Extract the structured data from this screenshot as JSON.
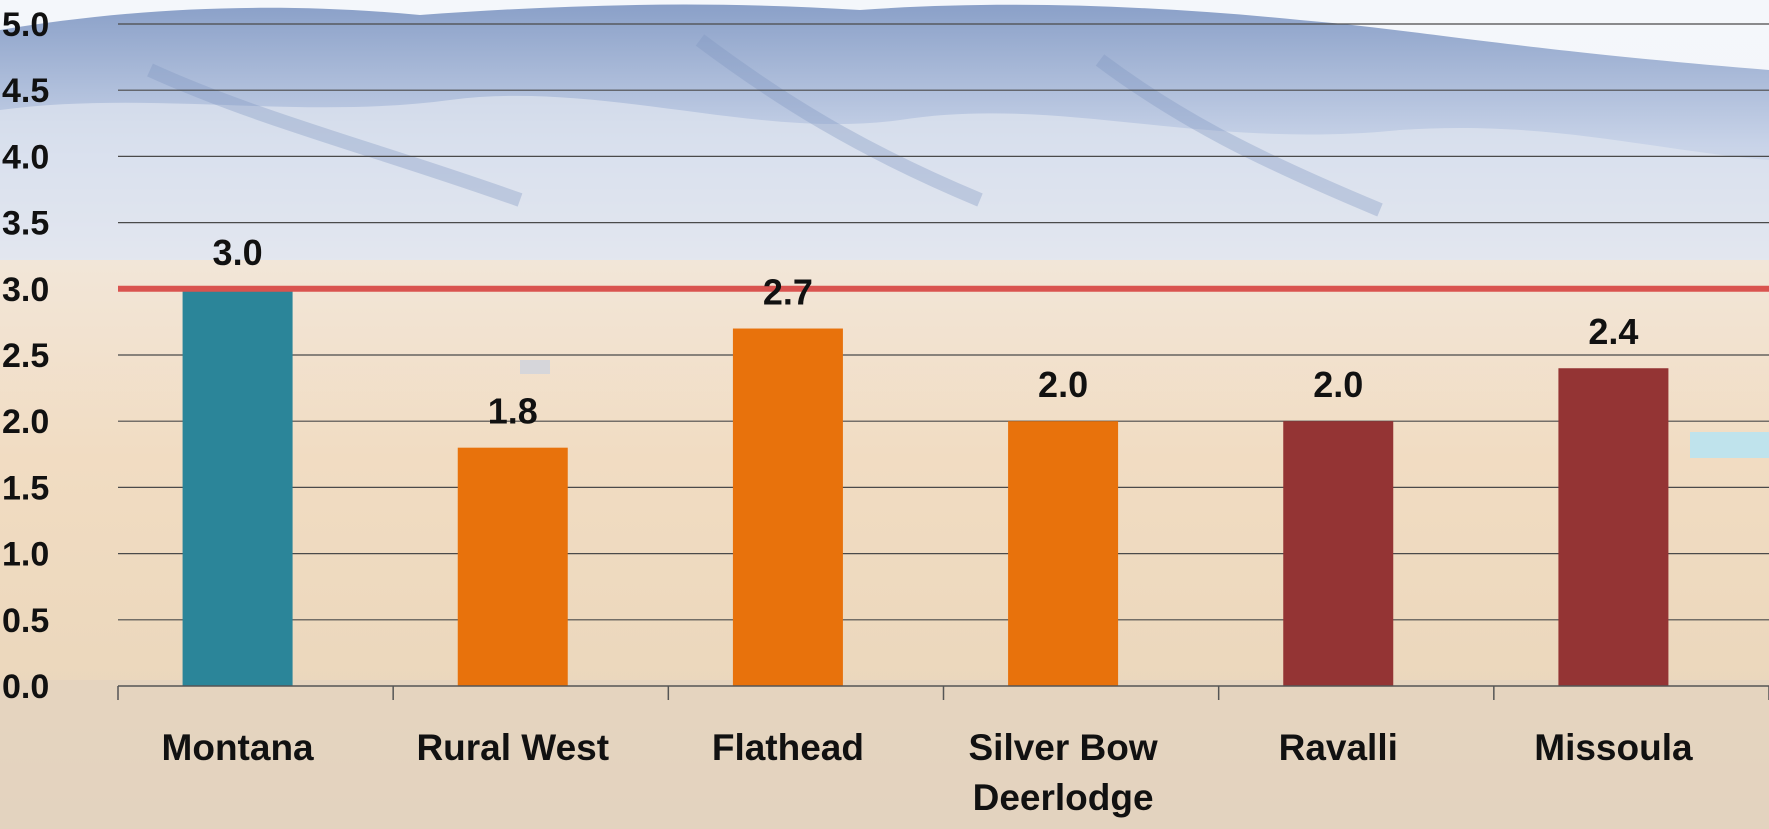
{
  "chart_data": {
    "type": "bar",
    "categories": [
      "Montana",
      "Rural West",
      "Flathead",
      "Silver Bow Deerlodge",
      "Ravalli",
      "Missoula"
    ],
    "category_lines": [
      [
        "Montana"
      ],
      [
        "Rural West"
      ],
      [
        "Flathead"
      ],
      [
        "Silver Bow",
        "Deerlodge"
      ],
      [
        "Ravalli"
      ],
      [
        "Missoula"
      ]
    ],
    "values": [
      3.0,
      1.8,
      2.7,
      2.0,
      2.0,
      2.4
    ],
    "value_labels": [
      "3.0",
      "1.8",
      "2.7",
      "2.0",
      "2.0",
      "2.4"
    ],
    "bar_colors": [
      "#2b8599",
      "#e8720c",
      "#e8720c",
      "#e8720c",
      "#943434",
      "#943434"
    ],
    "ylim": [
      0,
      5
    ],
    "yticks": [
      "0.0",
      "0.5",
      "1.0",
      "1.5",
      "2.0",
      "2.5",
      "3.0",
      "3.5",
      "4.0",
      "4.5",
      "5.0"
    ],
    "ytick_values": [
      0,
      0.5,
      1.0,
      1.5,
      2.0,
      2.5,
      3.0,
      3.5,
      4.0,
      4.5,
      5.0
    ],
    "reference_line": {
      "value": 3.0,
      "color": "#d9534f"
    },
    "grid": true,
    "background": "photo of snowy mountains and prairie"
  }
}
